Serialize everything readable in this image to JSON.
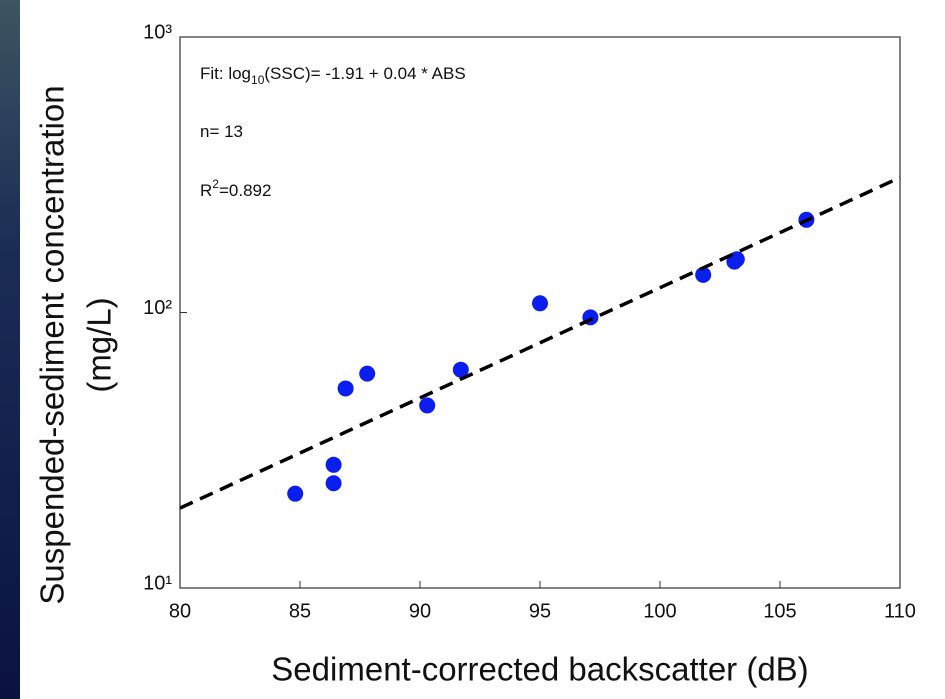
{
  "chart_data": {
    "type": "scatter",
    "xlabel": "Sediment-corrected backscatter (dB)",
    "ylabel": [
      "Suspended-sediment concentration",
      "(mg/L)"
    ],
    "annotations": [
      [
        "Fit: log",
        "10",
        "(SSC)= -1.91 + 0.04 * ABS"
      ],
      [
        "n= 13"
      ],
      [
        "R",
        "2",
        "=0.892"
      ]
    ],
    "xlim": [
      80,
      110
    ],
    "xticks": [
      80,
      85,
      90,
      95,
      100,
      105,
      110
    ],
    "ylim": [
      10,
      1000
    ],
    "yscale": "log",
    "yticks": [
      {
        "value": 10,
        "label": "10¹"
      },
      {
        "value": 100,
        "label": "10²"
      },
      {
        "value": 1000,
        "label": "10³"
      }
    ],
    "series": [
      {
        "color": "#0a1ef0",
        "marker": "circle",
        "x": [
          84.8,
          86.4,
          86.4,
          86.9,
          87.8,
          90.3,
          91.7,
          95.0,
          97.1,
          101.8,
          103.1,
          103.2,
          106.1
        ],
        "values": [
          22,
          24,
          28,
          53,
          60,
          46,
          62,
          108,
          96,
          137,
          153,
          156,
          217
        ]
      },
      {
        "color": "#000000",
        "marker": "dashed-line",
        "x": [
          80,
          110
        ],
        "values": [
          19.5,
          309
        ]
      }
    ]
  }
}
